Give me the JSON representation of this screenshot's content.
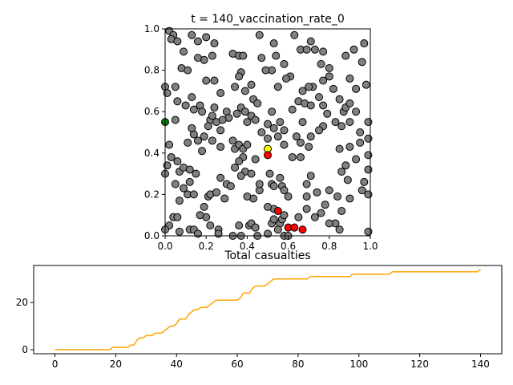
{
  "chart_data": [
    {
      "type": "scatter",
      "title": "t = 140_vaccination_rate_0",
      "xlabel": "",
      "ylabel": "",
      "xlim": [
        0,
        1
      ],
      "ylim": [
        0,
        1
      ],
      "xticks": [
        "0.0",
        "0.2",
        "0.4",
        "0.6",
        "0.8",
        "1.0"
      ],
      "yticks": [
        "0.0",
        "0.2",
        "0.4",
        "0.6",
        "0.8",
        "1.0"
      ],
      "grid": false,
      "legend": "none",
      "colors": {
        "susceptible": "#808080",
        "infected": "#ff0000",
        "exposed": "#ffff00",
        "recovered": "#008000",
        "edge": "#000000"
      },
      "special_points": [
        {
          "x": 0.0,
          "y": 0.55,
          "state": "recovered"
        },
        {
          "x": 0.5,
          "y": 0.42,
          "state": "exposed"
        },
        {
          "x": 0.5,
          "y": 0.39,
          "state": "infected"
        },
        {
          "x": 0.55,
          "y": 0.12,
          "state": "infected"
        },
        {
          "x": 0.6,
          "y": 0.04,
          "state": "infected"
        },
        {
          "x": 0.63,
          "y": 0.04,
          "state": "infected"
        },
        {
          "x": 0.67,
          "y": 0.03,
          "state": "infected"
        }
      ],
      "background_points": [
        [
          0.02,
          0.99
        ],
        [
          0.04,
          0.97
        ],
        [
          0.03,
          0.95
        ],
        [
          0.06,
          0.94
        ],
        [
          0.09,
          0.89
        ],
        [
          0.13,
          0.97
        ],
        [
          0.16,
          0.94
        ],
        [
          0.2,
          0.96
        ],
        [
          0.23,
          0.87
        ],
        [
          0.19,
          0.85
        ],
        [
          0.24,
          0.93
        ],
        [
          0.08,
          0.81
        ],
        [
          0.11,
          0.8
        ],
        [
          0.16,
          0.86
        ],
        [
          0.0,
          0.72
        ],
        [
          0.05,
          0.72
        ],
        [
          0.01,
          0.69
        ],
        [
          0.06,
          0.65
        ],
        [
          0.1,
          0.63
        ],
        [
          0.13,
          0.67
        ],
        [
          0.14,
          0.61
        ],
        [
          0.17,
          0.63
        ],
        [
          0.18,
          0.6
        ],
        [
          0.22,
          0.56
        ],
        [
          0.24,
          0.62
        ],
        [
          0.21,
          0.53
        ],
        [
          0.25,
          0.55
        ],
        [
          0.2,
          0.75
        ],
        [
          0.24,
          0.75
        ],
        [
          0.27,
          0.69
        ],
        [
          0.33,
          0.88
        ],
        [
          0.36,
          0.87
        ],
        [
          0.38,
          0.87
        ],
        [
          0.37,
          0.79
        ],
        [
          0.36,
          0.77
        ],
        [
          0.34,
          0.72
        ],
        [
          0.39,
          0.7
        ],
        [
          0.42,
          0.73
        ],
        [
          0.43,
          0.66
        ],
        [
          0.45,
          0.64
        ],
        [
          0.37,
          0.62
        ],
        [
          0.39,
          0.6
        ],
        [
          0.42,
          0.58
        ],
        [
          0.4,
          0.55
        ],
        [
          0.44,
          0.56
        ],
        [
          0.47,
          0.5
        ],
        [
          0.5,
          0.54
        ],
        [
          0.52,
          0.6
        ],
        [
          0.53,
          0.52
        ],
        [
          0.56,
          0.55
        ],
        [
          0.58,
          0.51
        ],
        [
          0.55,
          0.48
        ],
        [
          0.58,
          0.44
        ],
        [
          0.5,
          0.47
        ],
        [
          0.47,
          0.86
        ],
        [
          0.54,
          0.87
        ],
        [
          0.58,
          0.83
        ],
        [
          0.61,
          0.77
        ],
        [
          0.59,
          0.76
        ],
        [
          0.55,
          0.72
        ],
        [
          0.52,
          0.8
        ],
        [
          0.53,
          0.93
        ],
        [
          0.63,
          0.97
        ],
        [
          0.66,
          0.9
        ],
        [
          0.69,
          0.9
        ],
        [
          0.71,
          0.94
        ],
        [
          0.73,
          0.9
        ],
        [
          0.77,
          0.89
        ],
        [
          0.76,
          0.83
        ],
        [
          0.8,
          0.81
        ],
        [
          0.8,
          0.77
        ],
        [
          0.77,
          0.75
        ],
        [
          0.72,
          0.72
        ],
        [
          0.7,
          0.72
        ],
        [
          0.67,
          0.7
        ],
        [
          0.65,
          0.65
        ],
        [
          0.68,
          0.64
        ],
        [
          0.71,
          0.63
        ],
        [
          0.75,
          0.67
        ],
        [
          0.77,
          0.63
        ],
        [
          0.79,
          0.59
        ],
        [
          0.77,
          0.53
        ],
        [
          0.75,
          0.51
        ],
        [
          0.67,
          0.55
        ],
        [
          0.62,
          0.61
        ],
        [
          0.64,
          0.48
        ],
        [
          0.66,
          0.45
        ],
        [
          0.7,
          0.43
        ],
        [
          0.71,
          0.48
        ],
        [
          0.82,
          0.71
        ],
        [
          0.85,
          0.66
        ],
        [
          0.87,
          0.6
        ],
        [
          0.83,
          0.55
        ],
        [
          0.86,
          0.53
        ],
        [
          0.88,
          0.62
        ],
        [
          0.9,
          0.64
        ],
        [
          0.93,
          0.6
        ],
        [
          0.9,
          0.55
        ],
        [
          0.95,
          0.5
        ],
        [
          0.99,
          0.55
        ],
        [
          0.99,
          0.47
        ],
        [
          0.95,
          0.45
        ],
        [
          0.9,
          0.43
        ],
        [
          0.85,
          0.42
        ],
        [
          0.93,
          0.37
        ],
        [
          0.88,
          0.34
        ],
        [
          0.86,
          0.31
        ],
        [
          0.89,
          0.27
        ],
        [
          0.97,
          0.26
        ],
        [
          0.99,
          0.32
        ],
        [
          0.99,
          0.39
        ],
        [
          0.96,
          0.22
        ],
        [
          0.99,
          0.2
        ],
        [
          0.9,
          0.18
        ],
        [
          0.84,
          0.19
        ],
        [
          0.86,
          0.12
        ],
        [
          0.83,
          0.06
        ],
        [
          0.8,
          0.06
        ],
        [
          0.85,
          0.03
        ],
        [
          0.99,
          0.02
        ],
        [
          0.88,
          0.87
        ],
        [
          0.92,
          0.9
        ],
        [
          0.96,
          0.84
        ],
        [
          0.97,
          0.93
        ],
        [
          0.9,
          0.76
        ],
        [
          0.98,
          0.73
        ],
        [
          0.93,
          0.71
        ],
        [
          0.05,
          0.56
        ],
        [
          0.01,
          0.34
        ],
        [
          0.0,
          0.3
        ],
        [
          0.02,
          0.44
        ],
        [
          0.03,
          0.38
        ],
        [
          0.06,
          0.36
        ],
        [
          0.07,
          0.31
        ],
        [
          0.09,
          0.33
        ],
        [
          0.12,
          0.32
        ],
        [
          0.15,
          0.3
        ],
        [
          0.18,
          0.41
        ],
        [
          0.16,
          0.46
        ],
        [
          0.19,
          0.48
        ],
        [
          0.14,
          0.49
        ],
        [
          0.13,
          0.52
        ],
        [
          0.11,
          0.45
        ],
        [
          0.23,
          0.46
        ],
        [
          0.27,
          0.43
        ],
        [
          0.34,
          0.42
        ],
        [
          0.33,
          0.46
        ],
        [
          0.36,
          0.44
        ],
        [
          0.38,
          0.42
        ],
        [
          0.4,
          0.44
        ],
        [
          0.44,
          0.37
        ],
        [
          0.38,
          0.38
        ],
        [
          0.36,
          0.36
        ],
        [
          0.34,
          0.33
        ],
        [
          0.39,
          0.31
        ],
        [
          0.37,
          0.29
        ],
        [
          0.42,
          0.3
        ],
        [
          0.46,
          0.22
        ],
        [
          0.43,
          0.18
        ],
        [
          0.4,
          0.19
        ],
        [
          0.46,
          0.25
        ],
        [
          0.51,
          0.3
        ],
        [
          0.52,
          0.25
        ],
        [
          0.53,
          0.24
        ],
        [
          0.56,
          0.28
        ],
        [
          0.57,
          0.24
        ],
        [
          0.58,
          0.22
        ],
        [
          0.6,
          0.19
        ],
        [
          0.62,
          0.38
        ],
        [
          0.66,
          0.38
        ],
        [
          0.69,
          0.19
        ],
        [
          0.69,
          0.25
        ],
        [
          0.71,
          0.29
        ],
        [
          0.74,
          0.21
        ],
        [
          0.8,
          0.22
        ],
        [
          0.05,
          0.25
        ],
        [
          0.09,
          0.23
        ],
        [
          0.11,
          0.2
        ],
        [
          0.12,
          0.26
        ],
        [
          0.14,
          0.2
        ],
        [
          0.07,
          0.17
        ],
        [
          0.04,
          0.09
        ],
        [
          0.06,
          0.09
        ],
        [
          0.02,
          0.05
        ],
        [
          0.0,
          0.03
        ],
        [
          0.07,
          0.02
        ],
        [
          0.12,
          0.03
        ],
        [
          0.14,
          0.03
        ],
        [
          0.16,
          0.01
        ],
        [
          0.2,
          0.09
        ],
        [
          0.17,
          0.1
        ],
        [
          0.19,
          0.14
        ],
        [
          0.21,
          0.19
        ],
        [
          0.22,
          0.2
        ],
        [
          0.25,
          0.21
        ],
        [
          0.27,
          0.28
        ],
        [
          0.3,
          0.25
        ],
        [
          0.32,
          0.24
        ],
        [
          0.29,
          0.18
        ],
        [
          0.22,
          0.05
        ],
        [
          0.26,
          0.03
        ],
        [
          0.26,
          0.01
        ],
        [
          0.33,
          0.0
        ],
        [
          0.37,
          0.0
        ],
        [
          0.36,
          0.05
        ],
        [
          0.41,
          0.05
        ],
        [
          0.42,
          0.06
        ],
        [
          0.44,
          0.04
        ],
        [
          0.45,
          0.0
        ],
        [
          0.5,
          0.01
        ],
        [
          0.52,
          0.06
        ],
        [
          0.53,
          0.08
        ],
        [
          0.56,
          0.06
        ],
        [
          0.57,
          0.08
        ],
        [
          0.58,
          0.1
        ],
        [
          0.53,
          0.13
        ],
        [
          0.5,
          0.14
        ],
        [
          0.55,
          0.03
        ],
        [
          0.58,
          0.0
        ],
        [
          0.6,
          0.0
        ],
        [
          0.65,
          0.09
        ],
        [
          0.69,
          0.13
        ],
        [
          0.73,
          0.09
        ],
        [
          0.76,
          0.11
        ],
        [
          0.78,
          0.15
        ],
        [
          0.46,
          0.97
        ],
        [
          0.49,
          0.8
        ],
        [
          0.35,
          0.59
        ],
        [
          0.3,
          0.6
        ],
        [
          0.31,
          0.57
        ],
        [
          0.28,
          0.56
        ],
        [
          0.27,
          0.51
        ],
        [
          0.23,
          0.58
        ]
      ],
      "point_radius": 4.5
    },
    {
      "type": "line",
      "title": "Total casualties",
      "xlabel": "",
      "ylabel": "",
      "xlim": [
        -7,
        147
      ],
      "ylim": [
        -1.7,
        35.7
      ],
      "xticks": [
        "0",
        "20",
        "40",
        "60",
        "80",
        "100",
        "120",
        "140"
      ],
      "yticks": [
        "0",
        "20"
      ],
      "grid": false,
      "legend": "none",
      "color": "#ffa500",
      "x": [
        0,
        18,
        19,
        24,
        25,
        26,
        27,
        28,
        29,
        30,
        31,
        32,
        33,
        34,
        35,
        36,
        37,
        38,
        39,
        40,
        41,
        42,
        43,
        44,
        45,
        46,
        47,
        48,
        49,
        50,
        51,
        52,
        53,
        54,
        55,
        56,
        57,
        58,
        59,
        60,
        61,
        62,
        63,
        64,
        65,
        66,
        67,
        68,
        69,
        70,
        71,
        72,
        73,
        74,
        75,
        76,
        77,
        78,
        79,
        80,
        81,
        82,
        83,
        84,
        85,
        86,
        87,
        88,
        89,
        90,
        91,
        92,
        93,
        94,
        95,
        96,
        97,
        98,
        99,
        100,
        101,
        102,
        103,
        104,
        105,
        106,
        107,
        108,
        109,
        110,
        111,
        112,
        113,
        114,
        115,
        116,
        117,
        118,
        119,
        120,
        121,
        122,
        123,
        124,
        125,
        126,
        127,
        128,
        129,
        130,
        131,
        132,
        133,
        134,
        135,
        136,
        137,
        138,
        139,
        140
      ],
      "y": [
        0,
        0,
        1,
        1,
        2,
        2,
        4,
        5,
        5,
        6,
        6,
        6,
        7,
        7,
        7,
        8,
        9,
        10,
        10,
        11,
        13,
        13,
        13,
        15,
        16,
        17,
        17,
        18,
        18,
        18,
        19,
        20,
        21,
        21,
        21,
        21,
        21,
        21,
        21,
        21,
        22,
        24,
        24,
        24,
        26,
        27,
        27,
        27,
        27,
        28,
        29,
        30,
        30,
        30,
        30,
        30,
        30,
        30,
        30,
        30,
        30,
        30,
        30,
        31,
        31,
        31,
        31,
        31,
        31,
        31,
        31,
        31,
        31,
        31,
        31,
        31,
        31,
        32,
        32,
        32,
        32,
        32,
        32,
        32,
        32,
        32,
        32,
        32,
        32,
        32,
        33,
        33,
        33,
        33,
        33,
        33,
        33,
        33,
        33,
        33,
        33,
        33,
        33,
        33,
        33,
        33,
        33,
        33,
        33,
        33,
        33,
        33,
        33,
        33,
        33,
        33,
        33,
        33,
        33,
        34
      ]
    }
  ]
}
